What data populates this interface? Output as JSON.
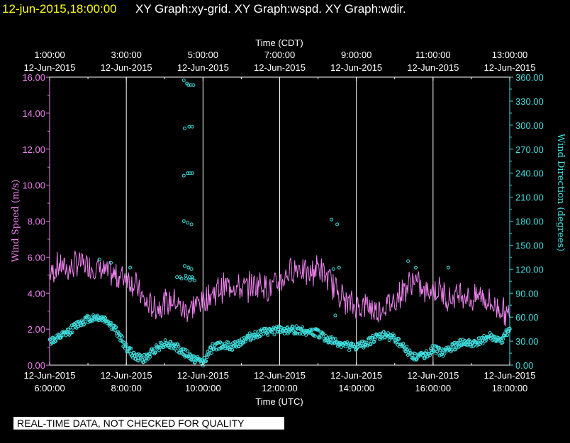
{
  "header": {
    "timestamp": "12-jun-2015,18:00:00",
    "graph_titles": "XY Graph:xy-grid.  XY Graph:wspd.  XY Graph:wdir.",
    "timestamp_color": "#ffff00"
  },
  "footer": {
    "note": "REAL-TIME DATA, NOT CHECKED FOR QUALITY"
  },
  "chart_data": {
    "type": "line",
    "top_xlabel": "Time (CDT)",
    "bottom_xlabel": "Time (UTC)",
    "top_ticks": [
      {
        "time": "1:00:00",
        "date": "12-Jun-2015"
      },
      {
        "time": "3:00:00",
        "date": "12-Jun-2015"
      },
      {
        "time": "5:00:00",
        "date": "12-Jun-2015"
      },
      {
        "time": "7:00:00",
        "date": "12-Jun-2015"
      },
      {
        "time": "9:00:00",
        "date": "12-Jun-2015"
      },
      {
        "time": "11:00:00",
        "date": "12-Jun-2015"
      },
      {
        "time": "13:00:00",
        "date": "12-Jun-2015"
      }
    ],
    "bottom_ticks": [
      {
        "time": "6:00:00",
        "date": "12-Jun-2015"
      },
      {
        "time": "8:00:00",
        "date": "12-Jun-2015"
      },
      {
        "time": "10:00:00",
        "date": "12-Jun-2015"
      },
      {
        "time": "12:00:00",
        "date": "12-Jun-2015"
      },
      {
        "time": "14:00:00",
        "date": "12-Jun-2015"
      },
      {
        "time": "16:00:00",
        "date": "12-Jun-2015"
      },
      {
        "time": "18:00:00",
        "date": "12-Jun-2015"
      }
    ],
    "xlim_utc_hours": [
      6,
      18
    ],
    "grid": "vertical",
    "left_axis": {
      "label": "Wind Speed (m/s)",
      "ylim": [
        0,
        16
      ],
      "ticks": [
        "0.00",
        "2.00",
        "4.00",
        "6.00",
        "8.00",
        "10.00",
        "12.00",
        "14.00",
        "16.00"
      ],
      "color": "#ee82ee"
    },
    "right_axis": {
      "label": "Wind Direction (degrees)",
      "ylim": [
        0,
        360
      ],
      "ticks": [
        "0.00",
        "30.00",
        "60.00",
        "90.00",
        "120.00",
        "150.00",
        "180.00",
        "210.00",
        "240.00",
        "270.00",
        "300.00",
        "330.00",
        "360.00"
      ],
      "color": "#40e0e0"
    },
    "series": [
      {
        "axis": "left",
        "style": "line",
        "color": "#ee82ee",
        "x_utc_hours": [
          6.0,
          6.25,
          6.5,
          6.75,
          7.0,
          7.25,
          7.5,
          7.75,
          8.0,
          8.25,
          8.5,
          8.75,
          9.0,
          9.25,
          9.5,
          9.75,
          10.0,
          10.25,
          10.5,
          10.75,
          11.0,
          11.25,
          11.5,
          11.75,
          12.0,
          12.25,
          12.5,
          12.75,
          13.0,
          13.25,
          13.5,
          13.75,
          14.0,
          14.25,
          14.5,
          14.75,
          15.0,
          15.25,
          15.5,
          15.75,
          16.0,
          16.25,
          16.5,
          16.75,
          17.0,
          17.25,
          17.5,
          17.75,
          18.0
        ],
        "y": [
          5.0,
          5.6,
          5.3,
          5.7,
          5.5,
          5.4,
          5.1,
          4.9,
          5.0,
          4.4,
          3.4,
          3.2,
          3.4,
          3.6,
          3.0,
          3.3,
          3.6,
          4.0,
          4.3,
          4.5,
          4.2,
          4.4,
          4.6,
          4.2,
          4.6,
          5.2,
          5.5,
          5.0,
          5.5,
          4.8,
          4.2,
          3.5,
          3.2,
          3.4,
          3.0,
          3.3,
          3.6,
          4.2,
          4.8,
          4.0,
          4.3,
          4.0,
          3.7,
          4.1,
          3.6,
          3.9,
          3.4,
          3.2,
          2.6
        ]
      },
      {
        "axis": "right",
        "style": "points",
        "color": "#40e0e0",
        "x_utc_hours": [
          6.0,
          6.25,
          6.5,
          6.75,
          7.0,
          7.25,
          7.5,
          7.75,
          8.0,
          8.25,
          8.5,
          8.75,
          9.0,
          9.25,
          9.5,
          9.75,
          10.0,
          10.25,
          10.5,
          10.75,
          11.0,
          11.25,
          11.5,
          11.75,
          12.0,
          12.25,
          12.5,
          12.75,
          13.0,
          13.25,
          13.5,
          13.75,
          14.0,
          14.25,
          14.5,
          14.75,
          15.0,
          15.25,
          15.5,
          15.75,
          16.0,
          16.25,
          16.5,
          16.75,
          17.0,
          17.25,
          17.5,
          17.75,
          18.0
        ],
        "y": [
          30,
          34,
          42,
          52,
          58,
          60,
          56,
          42,
          22,
          10,
          8,
          20,
          28,
          24,
          16,
          8,
          4,
          22,
          26,
          22,
          30,
          36,
          40,
          42,
          44,
          44,
          44,
          42,
          40,
          32,
          28,
          24,
          22,
          28,
          34,
          38,
          34,
          22,
          10,
          12,
          20,
          16,
          22,
          28,
          26,
          30,
          36,
          28,
          46
        ]
      },
      {
        "axis": "right",
        "style": "points",
        "color": "#40e0e0",
        "x_utc_hours": [
          9.5,
          9.58,
          9.62,
          9.68,
          9.75,
          9.52,
          9.64,
          9.72,
          9.5,
          9.6,
          9.66,
          9.72,
          9.5,
          9.6,
          9.7,
          9.52,
          9.62,
          9.7,
          9.4,
          9.55,
          9.65,
          9.72,
          9.32,
          9.44,
          9.56,
          9.66,
          9.72,
          9.78,
          7.6,
          8.1,
          7.3,
          13.35,
          13.5,
          13.45,
          15.35,
          15.55,
          16.4,
          13.4,
          13.55
        ],
        "y": [
          356,
          352,
          350,
          350,
          350,
          296,
          298,
          298,
          237,
          240,
          240,
          240,
          180,
          178,
          176,
          124,
          122,
          120,
          110,
          112,
          110,
          110,
          110,
          108,
          108,
          106,
          108,
          106,
          128,
          122,
          132,
          182,
          176,
          62,
          130,
          122,
          122,
          120,
          122
        ]
      }
    ]
  }
}
